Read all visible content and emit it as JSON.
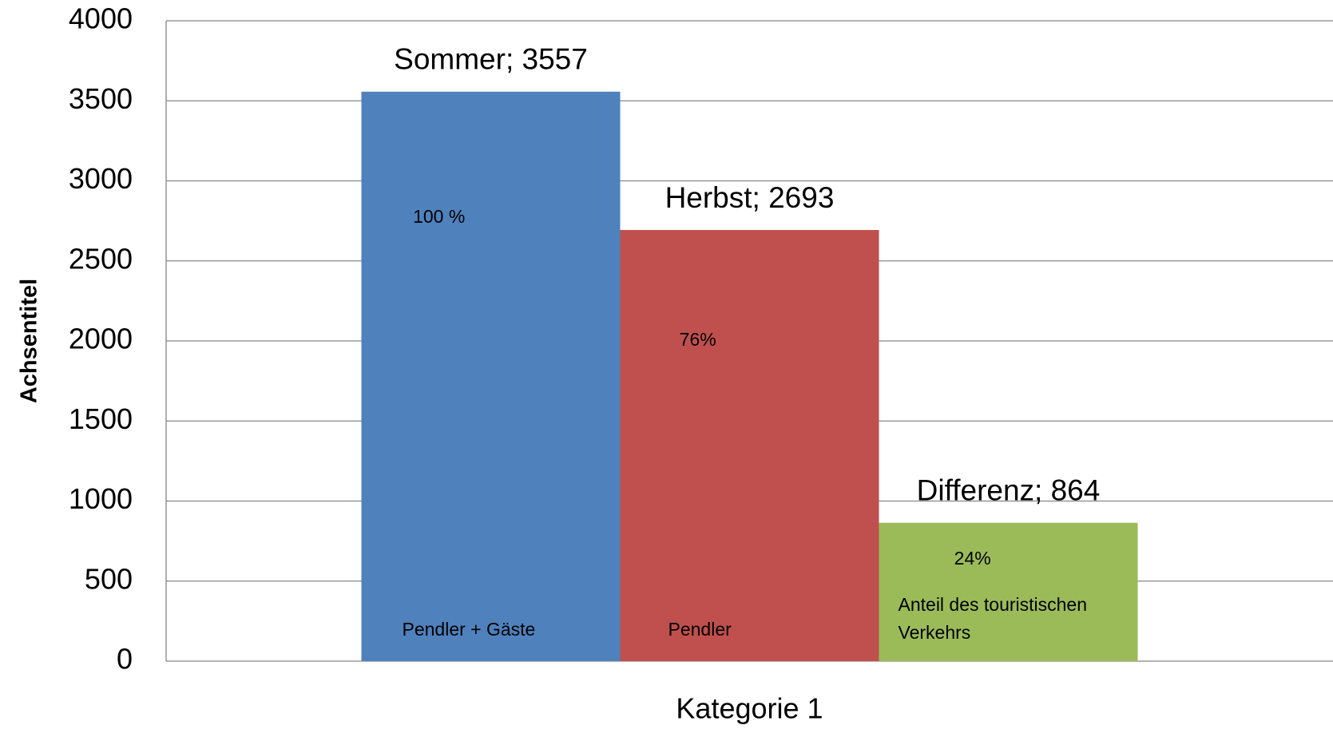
{
  "chart_data": {
    "type": "bar",
    "categories": [
      "Kategorie 1"
    ],
    "y_label": "Achsentitel",
    "ylim": [
      0,
      4000
    ],
    "yticks": [
      0,
      500,
      1000,
      1500,
      2000,
      2500,
      3000,
      3500,
      4000
    ],
    "grid": true,
    "series": [
      {
        "name": "Sommer",
        "color": "#4f81bd",
        "values": [
          3557
        ],
        "value_labels": [
          "Sommer; 3557"
        ],
        "annotations": [
          "100 %",
          "Pendler + Gäste"
        ]
      },
      {
        "name": "Herbst",
        "color": "#c0504d",
        "values": [
          2693
        ],
        "value_labels": [
          "Herbst; 2693"
        ],
        "annotations": [
          "76%",
          "Pendler"
        ]
      },
      {
        "name": "Differenz",
        "color": "#9bbb59",
        "values": [
          864
        ],
        "value_labels": [
          "Differenz; 864"
        ],
        "annotations": [
          "24%",
          "Anteil des touristischen",
          "Verkehrs"
        ]
      }
    ]
  }
}
